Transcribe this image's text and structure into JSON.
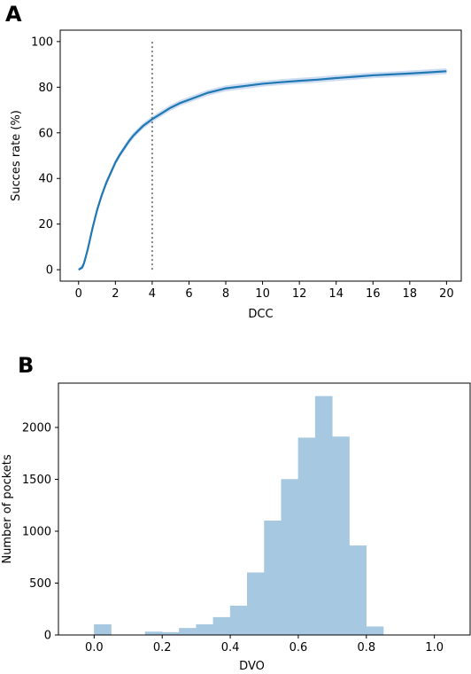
{
  "panels": {
    "a_label": "A",
    "b_label": "B"
  },
  "chart_data": [
    {
      "type": "line",
      "panel": "A",
      "title": "",
      "xlabel": "DCC",
      "ylabel": "Succes rate (%)",
      "xlim": [
        -1.0,
        20.8
      ],
      "ylim": [
        -5,
        105
      ],
      "xticks": [
        0,
        2,
        4,
        6,
        8,
        10,
        12,
        14,
        16,
        18,
        20
      ],
      "yticks": [
        0,
        20,
        40,
        60,
        80,
        100
      ],
      "grid": false,
      "series": [
        {
          "color": "#1f77b4",
          "band_color": "#aec7e8",
          "x": [
            0,
            0.1,
            0.2,
            0.3,
            0.5,
            0.75,
            1.0,
            1.25,
            1.5,
            1.75,
            2.0,
            2.25,
            2.5,
            2.75,
            3.0,
            3.25,
            3.5,
            3.75,
            4.0,
            4.5,
            5.0,
            5.5,
            6.0,
            6.5,
            7.0,
            7.5,
            8.0,
            9.0,
            10.0,
            11.0,
            12.0,
            13.0,
            14.0,
            15.0,
            16.0,
            17.0,
            18.0,
            19.0,
            20.0
          ],
          "y": [
            0,
            0.5,
            1,
            3,
            9,
            18,
            26,
            32.5,
            38,
            42.5,
            47,
            50.5,
            53.5,
            56.5,
            59,
            61,
            63,
            64.5,
            66,
            68.5,
            71,
            73,
            74.5,
            76,
            77.5,
            78.5,
            79.5,
            80.5,
            81.5,
            82.2,
            82.8,
            83.3,
            84,
            84.6,
            85.2,
            85.6,
            86,
            86.5,
            87
          ],
          "band_halfwidth": 1.3
        }
      ],
      "vline": {
        "x": 4,
        "y_from": 0,
        "y_to": 100,
        "style": "dotted",
        "color": "#808080"
      }
    },
    {
      "type": "bar",
      "panel": "B",
      "title": "",
      "xlabel": "DVO",
      "ylabel": "Number of pockets",
      "xlim": [
        -0.105,
        1.105
      ],
      "ylim": [
        0,
        2500
      ],
      "xticks": [
        0.0,
        0.2,
        0.4,
        0.6,
        0.8,
        1.0
      ],
      "xtick_labels": [
        "0.0",
        "0.2",
        "0.4",
        "0.6",
        "0.8",
        "1.0"
      ],
      "yticks": [
        0,
        500,
        1000,
        1500,
        2000
      ],
      "grid": false,
      "bin_width": 0.05,
      "color": "#a6c8e0",
      "bins": [
        {
          "x0": 0.0,
          "value": 100
        },
        {
          "x0": 0.15,
          "value": 30
        },
        {
          "x0": 0.2,
          "value": 25
        },
        {
          "x0": 0.25,
          "value": 65
        },
        {
          "x0": 0.3,
          "value": 100
        },
        {
          "x0": 0.35,
          "value": 170
        },
        {
          "x0": 0.4,
          "value": 280
        },
        {
          "x0": 0.45,
          "value": 600
        },
        {
          "x0": 0.5,
          "value": 1100
        },
        {
          "x0": 0.55,
          "value": 1500
        },
        {
          "x0": 0.6,
          "value": 1900
        },
        {
          "x0": 0.65,
          "value": 2300
        },
        {
          "x0": 0.7,
          "value": 1910
        },
        {
          "x0": 0.75,
          "value": 860
        },
        {
          "x0": 0.8,
          "value": 80
        }
      ]
    }
  ]
}
